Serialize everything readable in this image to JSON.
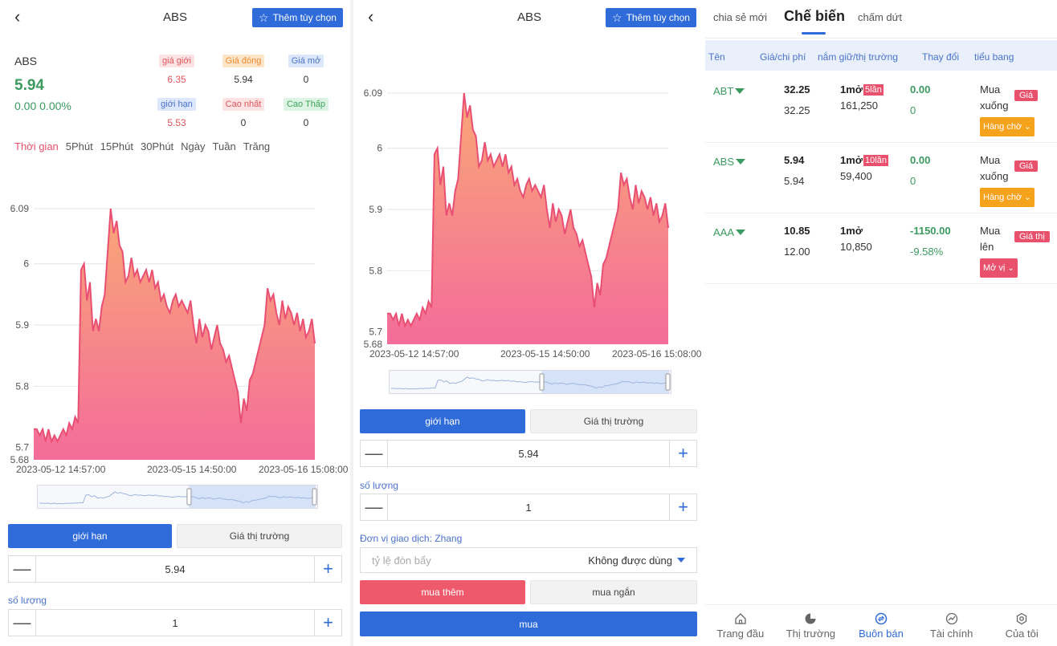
{
  "colors": {
    "accent": "#2f6bd9",
    "up": "#3a9a5f",
    "down": "#e9506b",
    "chart_line": "#e94f72"
  },
  "detail": {
    "title": "ABS",
    "fav_label": "Thêm tùy chọn",
    "symbol": "ABS",
    "price": "5.94",
    "change": "0.00 0.00%",
    "quotes": [
      {
        "label": "giá giới",
        "value": "6.35",
        "style": "red"
      },
      {
        "label": "Giá đóng",
        "value": "5.94",
        "style": "orange"
      },
      {
        "label": "Giá mở",
        "value": "0",
        "style": "blue"
      },
      {
        "label": "giới hạn",
        "value": "5.53",
        "style": "blue"
      },
      {
        "label": "Cao nhất",
        "value": "0",
        "style": "red"
      },
      {
        "label": "Cao Thấp",
        "value": "0",
        "style": "green"
      }
    ],
    "periods": [
      "Thời gian",
      "5Phút",
      "15Phút",
      "30Phút",
      "Ngày",
      "Tuần",
      "Trăng"
    ]
  },
  "chart_data": {
    "type": "area",
    "ylim": [
      5.68,
      6.09
    ],
    "yticks": [
      "6.09",
      "6",
      "5.9",
      "5.8",
      "5.7",
      "5.68"
    ],
    "xticks": [
      "2023-05-12 14:57:00",
      "2023-05-15 14:50:00",
      "2023-05-16 15:08:00"
    ],
    "values": [
      5.73,
      5.73,
      5.72,
      5.73,
      5.71,
      5.73,
      5.71,
      5.72,
      5.71,
      5.72,
      5.73,
      5.72,
      5.74,
      5.73,
      5.75,
      5.74,
      5.99,
      6.0,
      5.94,
      5.97,
      5.89,
      5.91,
      5.89,
      5.93,
      5.95,
      6.02,
      6.09,
      6.05,
      6.07,
      6.03,
      6.02,
      5.97,
      5.98,
      6.01,
      5.98,
      5.99,
      5.97,
      5.98,
      5.99,
      5.97,
      5.99,
      5.96,
      5.97,
      5.94,
      5.95,
      5.93,
      5.92,
      5.94,
      5.95,
      5.93,
      5.94,
      5.93,
      5.92,
      5.94,
      5.9,
      5.87,
      5.91,
      5.88,
      5.9,
      5.89,
      5.86,
      5.88,
      5.9,
      5.87,
      5.86,
      5.84,
      5.85,
      5.83,
      5.81,
      5.79,
      5.74,
      5.78,
      5.76,
      5.81,
      5.82,
      5.84,
      5.86,
      5.88,
      5.9,
      5.96,
      5.94,
      5.95,
      5.92,
      5.9,
      5.94,
      5.91,
      5.93,
      5.92,
      5.9,
      5.92,
      5.89,
      5.91,
      5.88,
      5.89,
      5.91,
      5.87
    ],
    "series": [
      {
        "name": "",
        "values": []
      }
    ]
  },
  "order": {
    "limit_label": "giới hạn",
    "market_label": "Giá thị trường",
    "price_value": "5.94",
    "qty_label": "số lượng",
    "qty_value": "1",
    "unit_label": "Đơn vị giao dịch: Zhang",
    "leverage_placeholder": "tỷ lệ đòn bẩy",
    "leverage_value": "Không được dùng",
    "long_label": "mua thêm",
    "short_label": "mua ngắn",
    "buy_label": "mua"
  },
  "positions": {
    "tabs": [
      "chia sẻ mới",
      "Chế biến",
      "chấm dứt"
    ],
    "headers": [
      "Tên",
      "Giá/chi phí",
      "nắm giữ/thị trường",
      "Thay đổi",
      "tiểu bang"
    ],
    "rows": [
      {
        "name": "ABT",
        "price": "32.25",
        "cost": "32.25",
        "hold": "1mở",
        "badge": "5lần",
        "market": "161,250",
        "change": "0.00",
        "change_pct": "0",
        "action": "Mua xuống",
        "tag": "Giá",
        "status": "Hàng chờ",
        "status_color": "#f5a21d"
      },
      {
        "name": "ABS",
        "price": "5.94",
        "cost": "5.94",
        "hold": "1mở",
        "badge": "10lần",
        "market": "59,400",
        "change": "0.00",
        "change_pct": "0",
        "action": "Mua xuống",
        "tag": "Giá",
        "status": "Hàng chờ",
        "status_color": "#f5a21d"
      },
      {
        "name": "AAA",
        "price": "10.85",
        "cost": "12.00",
        "hold": "1mở",
        "badge": "",
        "market": "10,850",
        "change": "-1150.00",
        "change_pct": "-9.58%",
        "action": "Mua lên",
        "tag": "Giá thị",
        "status": "Mở vị",
        "status_color": "#e9506b"
      }
    ]
  },
  "nav": {
    "items": [
      {
        "label": "Trang đầu",
        "icon": "home-icon"
      },
      {
        "label": "Thị trường",
        "icon": "pie-chart-icon"
      },
      {
        "label": "Buôn bán",
        "icon": "exchange-icon"
      },
      {
        "label": "Tài chính",
        "icon": "trend-icon"
      },
      {
        "label": "Của tôi",
        "icon": "settings-icon"
      }
    ],
    "active": 2
  }
}
